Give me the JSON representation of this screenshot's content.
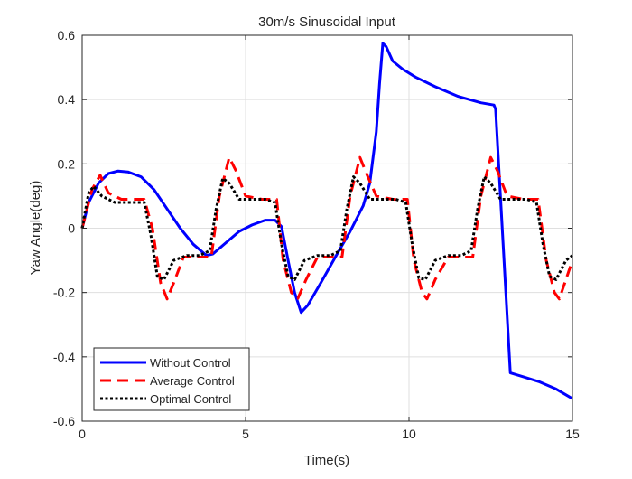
{
  "chart_data": {
    "type": "line",
    "title": "30m/s Sinusoidal Input",
    "xlabel": "Time(s)",
    "ylabel": "Yaw Angle(deg)",
    "xlim": [
      0,
      15
    ],
    "ylim": [
      -0.6,
      0.6
    ],
    "xticks": [
      0,
      5,
      10,
      15
    ],
    "xtick_labels": [
      "0",
      "5",
      "10",
      "15"
    ],
    "yticks": [
      -0.6,
      -0.4,
      -0.2,
      0,
      0.2,
      0.4,
      0.6
    ],
    "ytick_labels": [
      "-0.6",
      "-0.4",
      "-0.2",
      "0",
      "0.2",
      "0.4",
      "0.6"
    ],
    "grid": true,
    "legend_position": "bottom-left",
    "series": [
      {
        "name": "Without Control",
        "color": "#0000ff",
        "style": "solid",
        "points": [
          [
            0,
            0
          ],
          [
            0.2,
            0.08
          ],
          [
            0.5,
            0.14
          ],
          [
            0.8,
            0.17
          ],
          [
            1.1,
            0.178
          ],
          [
            1.4,
            0.175
          ],
          [
            1.8,
            0.16
          ],
          [
            2.2,
            0.12
          ],
          [
            2.6,
            0.06
          ],
          [
            3.0,
            0.0
          ],
          [
            3.4,
            -0.05
          ],
          [
            3.8,
            -0.085
          ],
          [
            4.0,
            -0.08
          ],
          [
            4.4,
            -0.045
          ],
          [
            4.8,
            -0.01
          ],
          [
            5.2,
            0.01
          ],
          [
            5.6,
            0.025
          ],
          [
            5.9,
            0.025
          ],
          [
            6.1,
            0.005
          ],
          [
            6.3,
            -0.1
          ],
          [
            6.5,
            -0.2
          ],
          [
            6.7,
            -0.262
          ],
          [
            6.9,
            -0.24
          ],
          [
            7.3,
            -0.17
          ],
          [
            7.8,
            -0.08
          ],
          [
            8.2,
            -0.01
          ],
          [
            8.6,
            0.07
          ],
          [
            8.8,
            0.14
          ],
          [
            9.0,
            0.3
          ],
          [
            9.1,
            0.45
          ],
          [
            9.2,
            0.575
          ],
          [
            9.3,
            0.565
          ],
          [
            9.5,
            0.52
          ],
          [
            9.8,
            0.495
          ],
          [
            10.2,
            0.47
          ],
          [
            10.8,
            0.44
          ],
          [
            11.5,
            0.41
          ],
          [
            12.2,
            0.39
          ],
          [
            12.6,
            0.383
          ],
          [
            12.65,
            0.37
          ],
          [
            13.1,
            -0.45
          ],
          [
            13.5,
            -0.462
          ],
          [
            14.0,
            -0.478
          ],
          [
            14.5,
            -0.5
          ],
          [
            15.0,
            -0.53
          ]
        ]
      },
      {
        "name": "Average Control",
        "color": "#ff0000",
        "style": "dashed",
        "points": [
          [
            0,
            0
          ],
          [
            0.3,
            0.12
          ],
          [
            0.55,
            0.165
          ],
          [
            0.8,
            0.11
          ],
          [
            1.2,
            0.09
          ],
          [
            1.6,
            0.09
          ],
          [
            1.9,
            0.09
          ],
          [
            2.15,
            0.0
          ],
          [
            2.4,
            -0.17
          ],
          [
            2.6,
            -0.22
          ],
          [
            2.8,
            -0.17
          ],
          [
            3.1,
            -0.09
          ],
          [
            3.6,
            -0.09
          ],
          [
            3.95,
            -0.09
          ],
          [
            4.2,
            0.1
          ],
          [
            4.5,
            0.22
          ],
          [
            4.7,
            0.18
          ],
          [
            5.0,
            0.1
          ],
          [
            5.5,
            0.09
          ],
          [
            5.95,
            0.09
          ],
          [
            6.15,
            -0.1
          ],
          [
            6.4,
            -0.2
          ],
          [
            6.6,
            -0.218
          ],
          [
            6.85,
            -0.16
          ],
          [
            7.2,
            -0.09
          ],
          [
            7.7,
            -0.09
          ],
          [
            7.95,
            -0.09
          ],
          [
            8.2,
            0.1
          ],
          [
            8.5,
            0.22
          ],
          [
            8.7,
            0.17
          ],
          [
            9.0,
            0.1
          ],
          [
            9.5,
            0.09
          ],
          [
            9.95,
            0.09
          ],
          [
            10.15,
            -0.1
          ],
          [
            10.4,
            -0.2
          ],
          [
            10.55,
            -0.22
          ],
          [
            10.8,
            -0.16
          ],
          [
            11.2,
            -0.09
          ],
          [
            11.7,
            -0.09
          ],
          [
            11.95,
            -0.09
          ],
          [
            12.2,
            0.1
          ],
          [
            12.5,
            0.22
          ],
          [
            12.7,
            0.18
          ],
          [
            13.0,
            0.1
          ],
          [
            13.5,
            0.09
          ],
          [
            13.95,
            0.09
          ],
          [
            14.2,
            -0.1
          ],
          [
            14.45,
            -0.2
          ],
          [
            14.6,
            -0.22
          ],
          [
            14.8,
            -0.16
          ],
          [
            15.0,
            -0.1
          ]
        ]
      },
      {
        "name": "Optimal Control",
        "color": "#000000",
        "style": "dotted",
        "points": [
          [
            0,
            0
          ],
          [
            0.2,
            0.11
          ],
          [
            0.35,
            0.13
          ],
          [
            0.6,
            0.1
          ],
          [
            1.0,
            0.08
          ],
          [
            1.5,
            0.08
          ],
          [
            1.9,
            0.08
          ],
          [
            2.1,
            -0.02
          ],
          [
            2.3,
            -0.15
          ],
          [
            2.5,
            -0.16
          ],
          [
            2.8,
            -0.1
          ],
          [
            3.2,
            -0.085
          ],
          [
            3.6,
            -0.085
          ],
          [
            3.9,
            -0.07
          ],
          [
            4.1,
            0.06
          ],
          [
            4.3,
            0.155
          ],
          [
            4.5,
            0.14
          ],
          [
            4.8,
            0.09
          ],
          [
            5.2,
            0.09
          ],
          [
            5.6,
            0.09
          ],
          [
            5.9,
            0.08
          ],
          [
            6.1,
            -0.05
          ],
          [
            6.3,
            -0.15
          ],
          [
            6.5,
            -0.16
          ],
          [
            6.8,
            -0.1
          ],
          [
            7.2,
            -0.085
          ],
          [
            7.6,
            -0.085
          ],
          [
            7.9,
            -0.07
          ],
          [
            8.1,
            0.06
          ],
          [
            8.3,
            0.16
          ],
          [
            8.5,
            0.14
          ],
          [
            8.8,
            0.09
          ],
          [
            9.2,
            0.09
          ],
          [
            9.6,
            0.09
          ],
          [
            9.9,
            0.08
          ],
          [
            10.1,
            -0.05
          ],
          [
            10.3,
            -0.155
          ],
          [
            10.5,
            -0.16
          ],
          [
            10.8,
            -0.1
          ],
          [
            11.2,
            -0.085
          ],
          [
            11.6,
            -0.085
          ],
          [
            11.9,
            -0.07
          ],
          [
            12.1,
            0.06
          ],
          [
            12.3,
            0.16
          ],
          [
            12.5,
            0.14
          ],
          [
            12.8,
            0.09
          ],
          [
            13.2,
            0.09
          ],
          [
            13.6,
            0.09
          ],
          [
            13.9,
            0.08
          ],
          [
            14.1,
            -0.05
          ],
          [
            14.3,
            -0.15
          ],
          [
            14.5,
            -0.16
          ],
          [
            14.8,
            -0.1
          ],
          [
            15.0,
            -0.085
          ]
        ]
      }
    ]
  }
}
